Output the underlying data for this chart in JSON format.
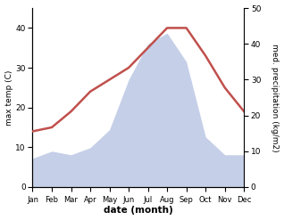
{
  "months": [
    "Jan",
    "Feb",
    "Mar",
    "Apr",
    "May",
    "Jun",
    "Jul",
    "Aug",
    "Sep",
    "Oct",
    "Nov",
    "Dec"
  ],
  "temp": [
    14,
    15,
    19,
    24,
    27,
    30,
    35,
    40,
    40,
    33,
    25,
    19
  ],
  "precip": [
    8,
    10,
    9,
    11,
    16,
    30,
    40,
    43,
    35,
    14,
    9,
    9
  ],
  "temp_color": "#c0504d",
  "precip_fill_color": "#c5cfe8",
  "ylabel_left": "max temp (C)",
  "ylabel_right": "med. precipitation (kg/m2)",
  "xlabel": "date (month)",
  "ylim_left": [
    0,
    45
  ],
  "ylim_right": [
    0,
    50
  ],
  "yticks_left": [
    0,
    10,
    20,
    30,
    40
  ],
  "yticks_right": [
    0,
    10,
    20,
    30,
    40,
    50
  ],
  "bg_color": "#ffffff",
  "line_width": 1.8,
  "figsize": [
    3.18,
    2.47
  ],
  "dpi": 100
}
